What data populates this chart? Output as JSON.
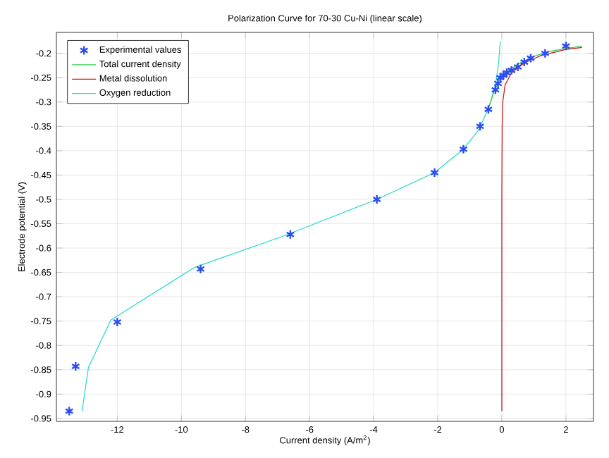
{
  "chart_data": {
    "type": "line",
    "title": "Polarization Curve for 70-30 Cu-Ni (linear scale)",
    "xlabel": "Current density (A/m$^{2}$)",
    "ylabel": "Electrode potential (V)",
    "xlim": [
      -13.9,
      2.86
    ],
    "ylim": [
      -0.956,
      -0.157
    ],
    "xticks": [
      -12,
      -10,
      -8,
      -6,
      -4,
      -2,
      0,
      2
    ],
    "yticks": [
      -0.95,
      -0.9,
      -0.85,
      -0.8,
      -0.75,
      -0.7,
      -0.65,
      -0.6,
      -0.55,
      -0.5,
      -0.45,
      -0.4,
      -0.35,
      -0.3,
      -0.25,
      -0.2
    ],
    "grid": true,
    "legend": "top left",
    "series": [
      {
        "name": "Experimental values",
        "type": "scatter",
        "marker": "cross",
        "color": "#2a4cf5",
        "x": [
          -13.5,
          -13.3,
          -12.0,
          -9.4,
          -6.6,
          -3.9,
          -2.1,
          -1.2,
          -0.68,
          -0.42,
          -0.2,
          -0.12,
          -0.05,
          0.05,
          0.15,
          0.3,
          0.5,
          0.7,
          0.9,
          1.35,
          2.0
        ],
        "values": [
          -0.935,
          -0.843,
          -0.752,
          -0.643,
          -0.572,
          -0.5,
          -0.445,
          -0.397,
          -0.35,
          -0.315,
          -0.275,
          -0.262,
          -0.25,
          -0.245,
          -0.24,
          -0.235,
          -0.228,
          -0.218,
          -0.21,
          -0.2,
          -0.185
        ]
      },
      {
        "name": "Total current density",
        "color": "#33cc44",
        "x": [
          -0.4,
          -0.25,
          -0.12,
          0.0,
          0.2,
          0.5,
          1.0,
          1.5,
          2.0,
          2.5
        ],
        "values": [
          -0.31,
          -0.28,
          -0.262,
          null,
          -0.236,
          -0.222,
          -0.206,
          -0.196,
          -0.19,
          -0.185
        ]
      },
      {
        "name": "Metal dissolution",
        "color": "#cc1111",
        "x": [
          0.0,
          0.0,
          0.01,
          0.03,
          0.1,
          0.3,
          0.7,
          1.2,
          2.0,
          2.5
        ],
        "values": [
          -0.935,
          -0.5,
          -0.35,
          -0.3,
          -0.265,
          -0.24,
          -0.22,
          -0.205,
          -0.192,
          -0.188
        ]
      },
      {
        "name": "Oxygen reduction",
        "color": "#22d8cc",
        "x": [
          -13.1,
          -12.9,
          -12.2,
          -9.6,
          -6.8,
          -3.9,
          -2.1,
          -1.2,
          -0.7,
          -0.4,
          -0.2,
          -0.1,
          -0.05
        ],
        "values": [
          -0.935,
          -0.845,
          -0.748,
          -0.64,
          -0.575,
          -0.5,
          -0.445,
          -0.397,
          -0.355,
          -0.31,
          -0.265,
          -0.22,
          -0.175
        ]
      }
    ]
  }
}
